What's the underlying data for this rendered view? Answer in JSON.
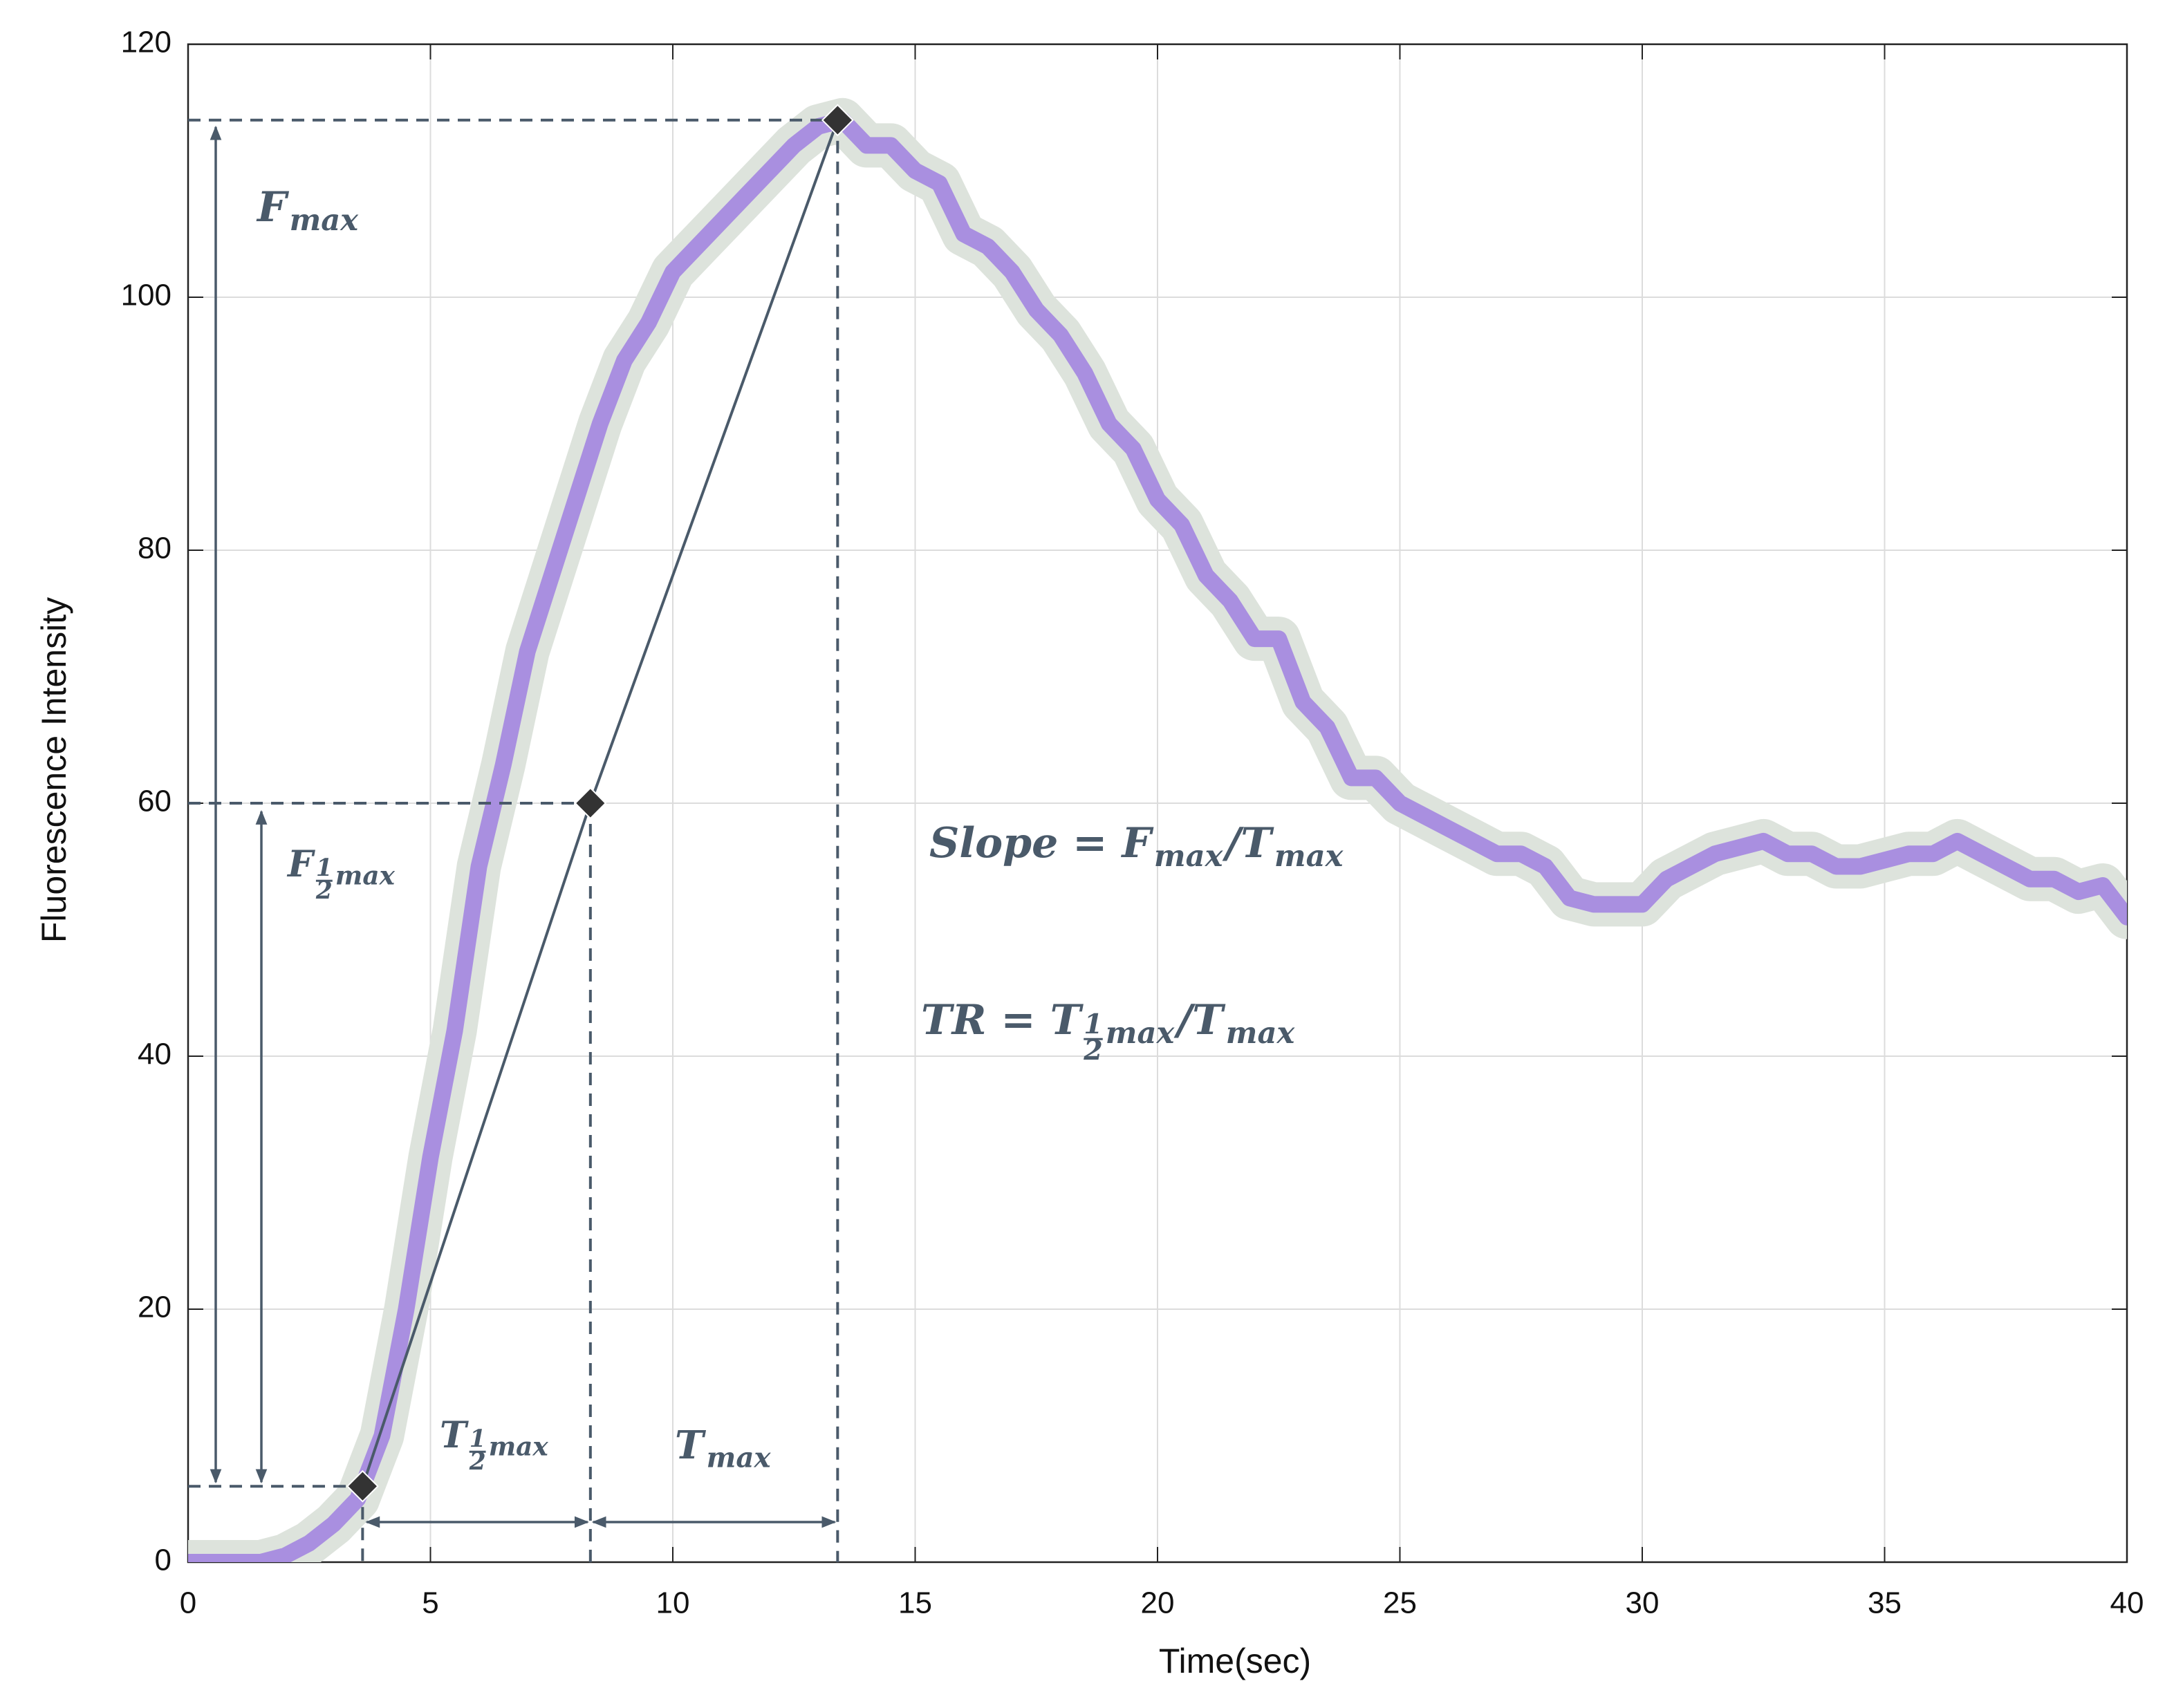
{
  "chart_data": {
    "type": "line",
    "xlabel": "Time(sec)",
    "ylabel": "Fluorescence Intensity",
    "xlim": [
      0,
      40
    ],
    "ylim": [
      0,
      120
    ],
    "xticks": [
      0,
      5,
      10,
      15,
      20,
      25,
      30,
      35,
      40
    ],
    "yticks": [
      0,
      20,
      40,
      60,
      80,
      100,
      120
    ],
    "grid": true,
    "x": [
      0,
      0.5,
      1,
      1.5,
      2,
      2.5,
      3,
      3.5,
      4,
      4.5,
      5,
      5.5,
      6,
      6.5,
      7,
      7.5,
      8,
      8.5,
      9,
      9.5,
      10,
      10.5,
      11,
      11.5,
      12,
      12.5,
      13,
      13.5,
      14,
      14.5,
      15,
      15.5,
      16,
      16.5,
      17,
      17.5,
      18,
      18.5,
      19,
      19.5,
      20,
      20.5,
      21,
      21.5,
      22,
      22.5,
      23,
      23.5,
      24,
      24.5,
      25,
      25.5,
      26,
      26.5,
      27,
      27.5,
      28,
      28.5,
      29,
      29.5,
      30,
      30.5,
      31,
      31.5,
      32,
      32.5,
      33,
      33.5,
      34,
      34.5,
      35,
      35.5,
      36,
      36.5,
      37,
      37.5,
      38,
      38.5,
      39,
      39.5,
      40
    ],
    "series": [
      {
        "color": "#a98fe0",
        "halo": "#dde3dc",
        "values": [
          0,
          0,
          0,
          0,
          0.5,
          1.5,
          3,
          5,
          10,
          20,
          32,
          42,
          55,
          63,
          72,
          78,
          84,
          90,
          95,
          98,
          102,
          104,
          106,
          108,
          110,
          112,
          113.5,
          114,
          112,
          112,
          110,
          109,
          105,
          104,
          102,
          99,
          97,
          94,
          90,
          88,
          84,
          82,
          78,
          76,
          73,
          73,
          68,
          66,
          62,
          62,
          60,
          59,
          58,
          57,
          56,
          56,
          55,
          52.5,
          52,
          52,
          52,
          54,
          55,
          56,
          56.5,
          57,
          56,
          56,
          55,
          55,
          55.5,
          56,
          56,
          57,
          56,
          55,
          54,
          54,
          53,
          53.5,
          51
        ]
      }
    ],
    "markers": {
      "x": [
        3.6,
        8.3,
        13.4
      ],
      "y": [
        6,
        60,
        114
      ],
      "color": "#333333"
    },
    "annotations": [
      {
        "parts": [
          {
            "t": "F"
          },
          {
            "t": "max",
            "sub": true
          }
        ]
      },
      {
        "parts": [
          {
            "t": "F"
          },
          {
            "t": "1",
            "num": true
          },
          {
            "t": "2",
            "den": true
          },
          {
            "t": "max",
            "sub": true
          }
        ]
      },
      {
        "parts": [
          {
            "t": "T"
          },
          {
            "t": "1",
            "num": true
          },
          {
            "t": "2",
            "den": true
          },
          {
            "t": "max",
            "sub": true
          }
        ]
      },
      {
        "parts": [
          {
            "t": "T"
          },
          {
            "t": "max",
            "sub": true
          }
        ]
      },
      {
        "parts": [
          {
            "t": "Slope = F"
          },
          {
            "t": "max",
            "sub": true
          },
          {
            "t": "/T"
          },
          {
            "t": "max",
            "sub": true
          }
        ]
      },
      {
        "parts": [
          {
            "t": "TR = T"
          },
          {
            "t": "1",
            "num": true
          },
          {
            "t": "2",
            "den": true
          },
          {
            "t": "max",
            "sub": true
          },
          {
            "t": "/T"
          },
          {
            "t": "max",
            "sub": true
          }
        ]
      }
    ]
  }
}
